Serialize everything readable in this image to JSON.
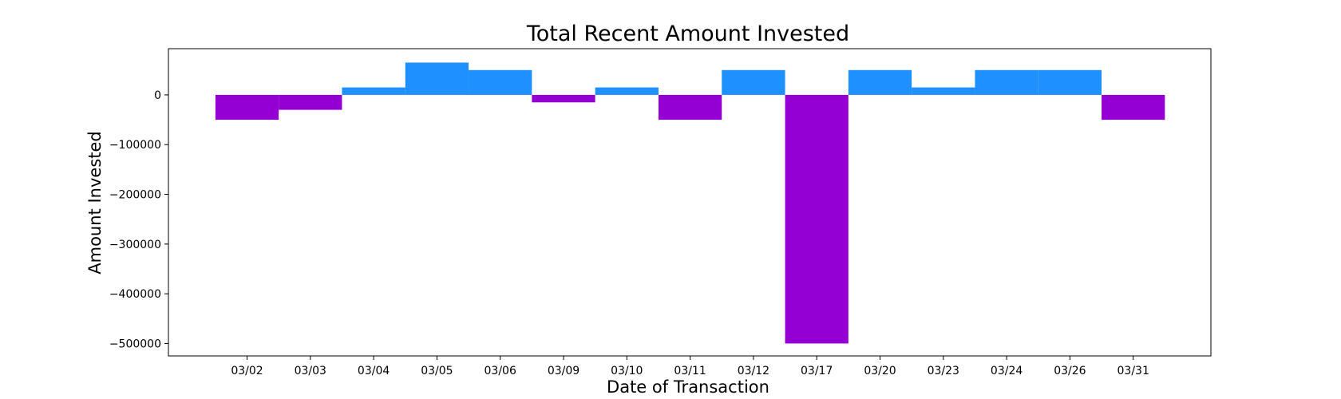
{
  "chart_data": {
    "type": "bar",
    "title": "Total Recent Amount Invested",
    "xlabel": "Date of Transaction",
    "ylabel": "Amount Invested",
    "categories": [
      "03/02",
      "03/03",
      "03/04",
      "03/05",
      "03/06",
      "03/09",
      "03/10",
      "03/11",
      "03/12",
      "03/17",
      "03/20",
      "03/23",
      "03/24",
      "03/26",
      "03/31"
    ],
    "values": [
      -50000,
      -30000,
      15000,
      65000,
      50000,
      -15000,
      15000,
      -50000,
      50000,
      -500000,
      50000,
      15000,
      50000,
      50000,
      -50000
    ],
    "yticks": [
      0,
      -100000,
      -200000,
      -300000,
      -400000,
      -500000
    ],
    "ytick_labels": [
      "0",
      "−100000",
      "−200000",
      "−300000",
      "−400000",
      "−500000"
    ],
    "ylim": [
      -525000,
      93000
    ],
    "colors": {
      "positive": "#1E90FF",
      "negative": "#9400D3"
    },
    "grid": false,
    "legend": "none"
  }
}
